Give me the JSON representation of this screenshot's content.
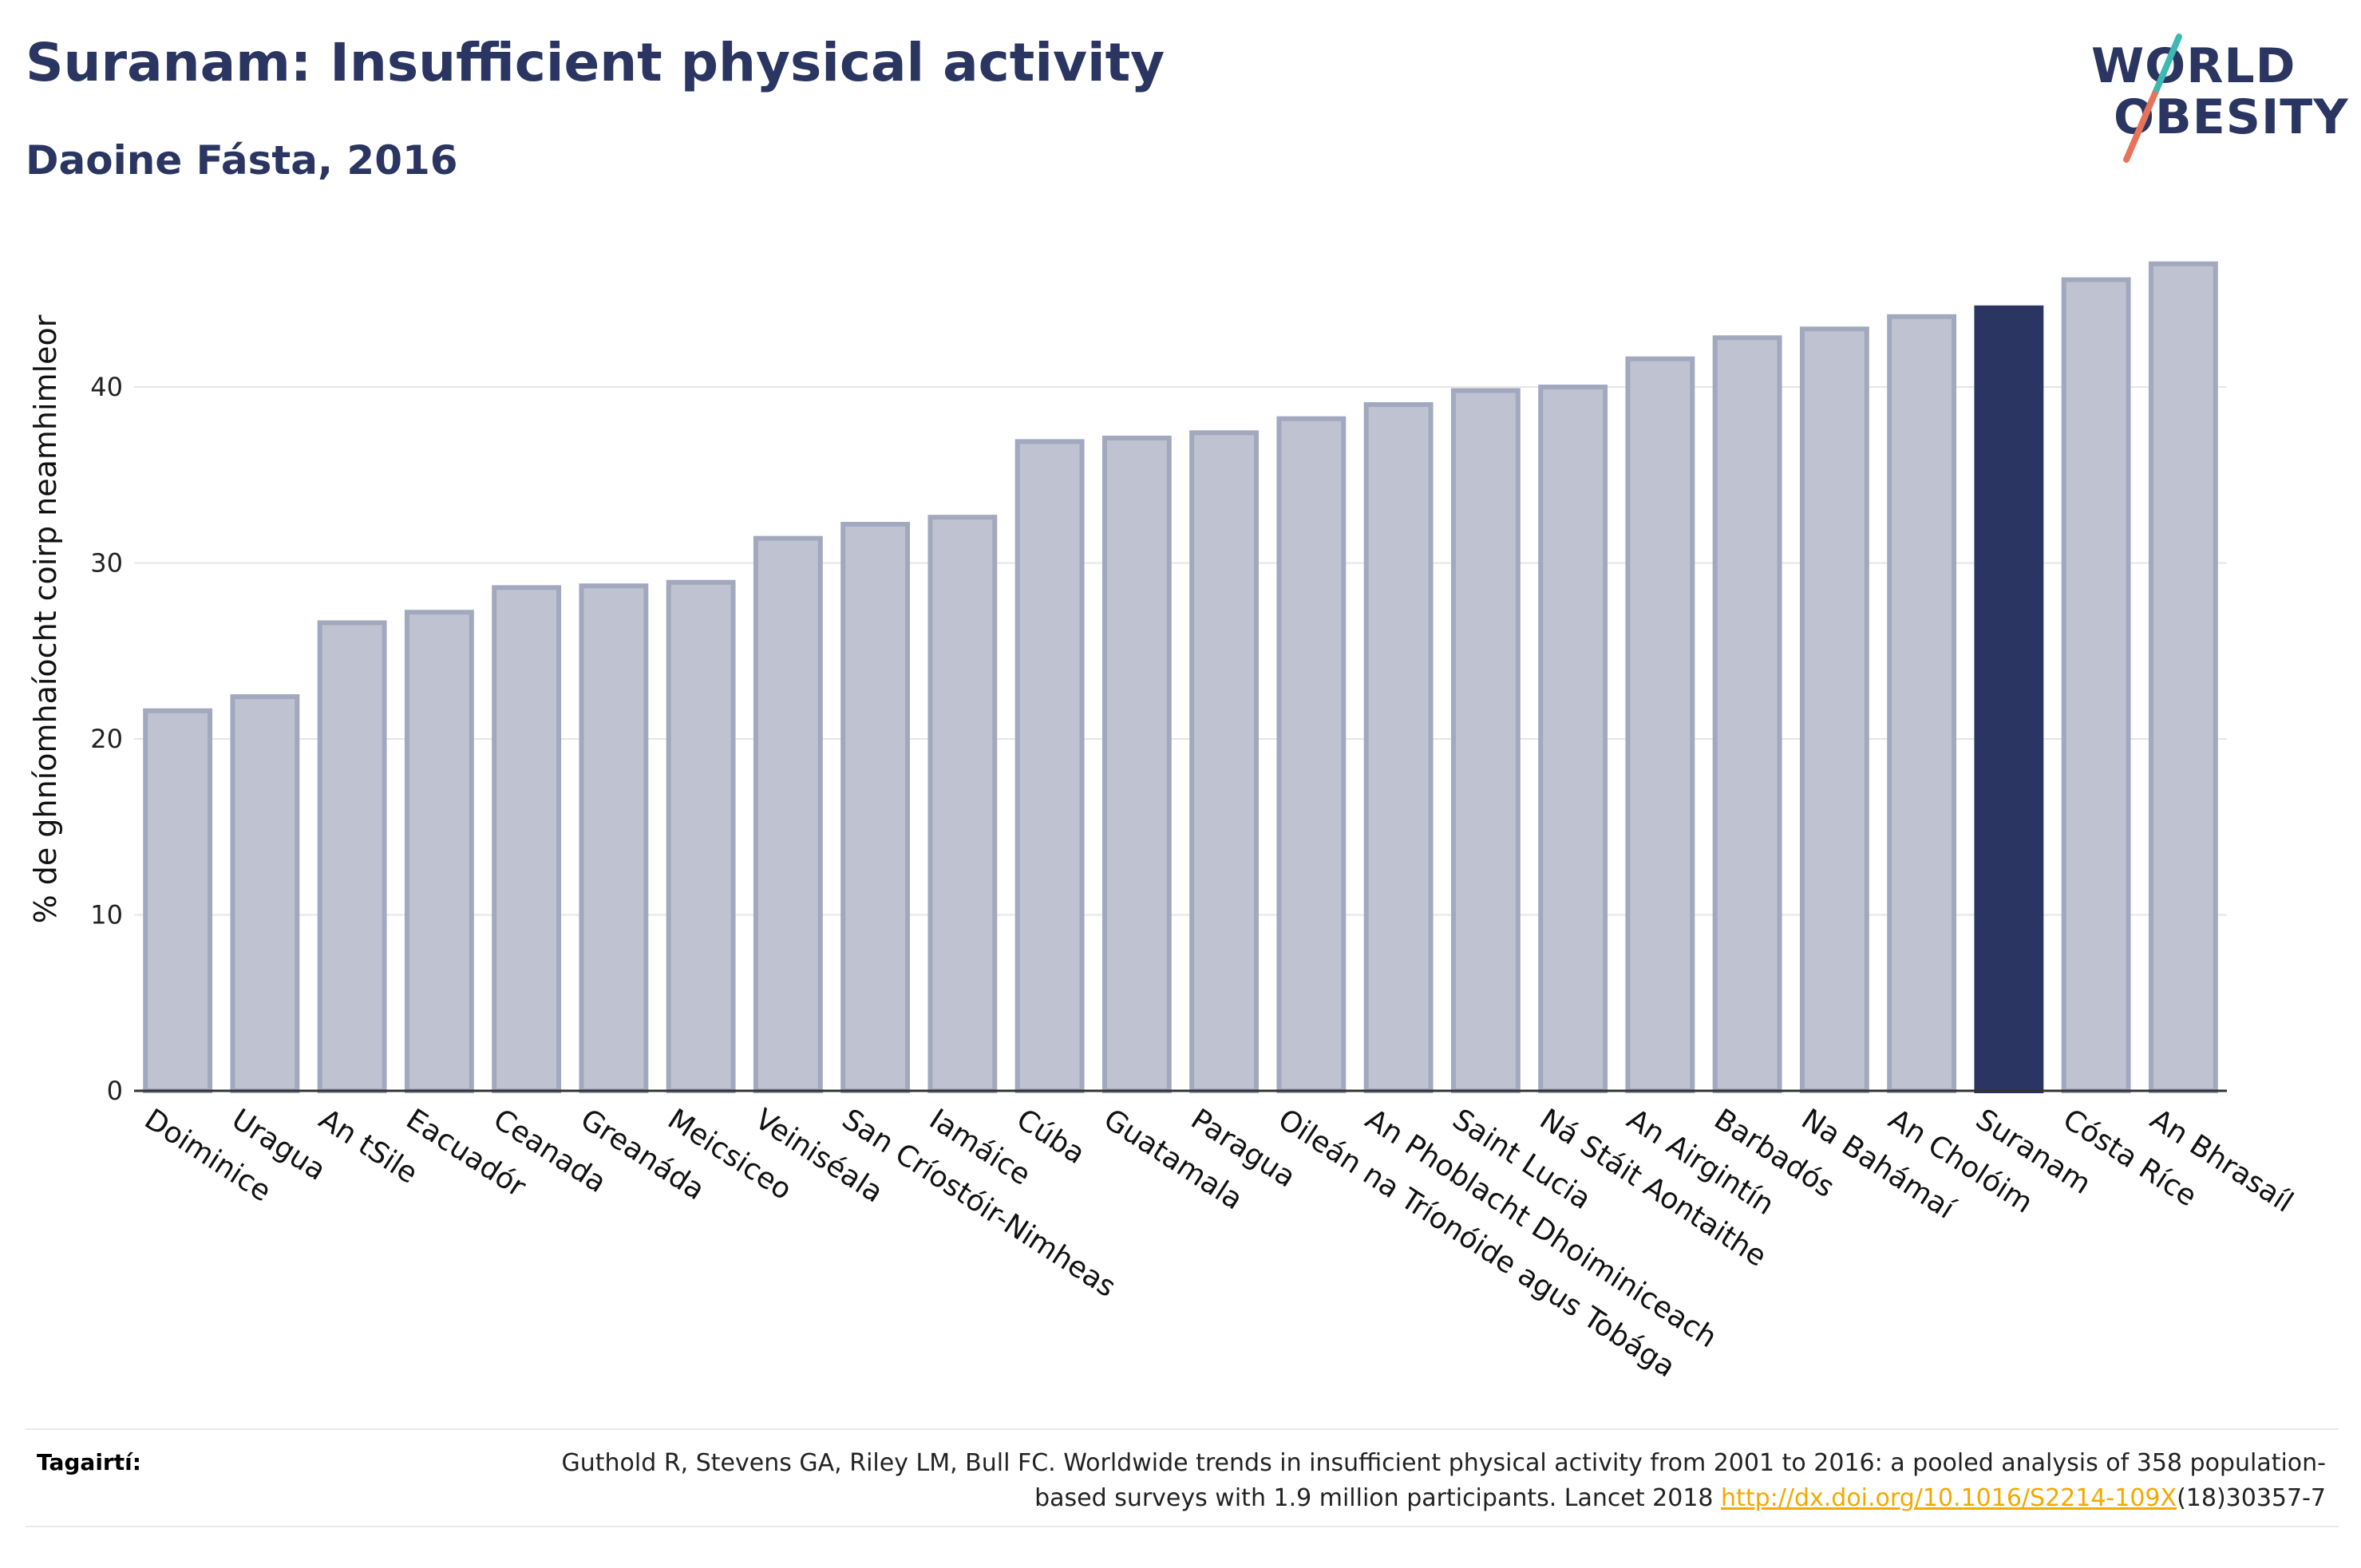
{
  "header": {
    "title": "Suranam: Insufficient physical activity",
    "subtitle": "Daoine Fásta, 2016"
  },
  "logo": {
    "line1": "WORLD",
    "line2": "OBESITY"
  },
  "colors": {
    "bar": "#bfc3d1",
    "bar_stroke": "#a2a8bd",
    "highlight": "#2a3561",
    "text": "#2a3561"
  },
  "chart_data": {
    "type": "bar",
    "ylabel": "% de ghníomhaíocht coirp neamhimleor",
    "ylim": [
      0,
      47
    ],
    "yticks": [
      0,
      10,
      20,
      30,
      40
    ],
    "grid": true,
    "highlight": "Suranam",
    "categories": [
      "Doiminice",
      "Uragua",
      "An tSile",
      "Eacuadór",
      "Ceanada",
      "Greanáda",
      "Meicsiceo",
      "Veiniséala",
      "San Críostóir-Nimheas",
      "Iamáice",
      "Cúba",
      "Guatamala",
      "Paragua",
      "Oileán na Tríonóide agus Tobága",
      "An Phoblacht Dhoiminiceach",
      "Saint Lucia",
      "Ná Stáit Aontaithe",
      "An Airgintín",
      "Barbadós",
      "Na Bahámaí",
      "An Cholóim",
      "Suranam",
      "Cósta Ríce",
      "An Bhrasaíl"
    ],
    "values": [
      21.6,
      22.4,
      26.6,
      27.2,
      28.6,
      28.7,
      28.9,
      31.4,
      32.2,
      32.6,
      36.9,
      37.1,
      37.4,
      38.2,
      39.0,
      39.8,
      40.0,
      41.6,
      42.8,
      43.3,
      44.0,
      44.5,
      46.1,
      47.0
    ]
  },
  "references": {
    "label": "Tagairtí:",
    "text_before": "Guthold R, Stevens GA, Riley LM, Bull FC. Worldwide trends in insufficient physical activity from 2001 to 2016: a pooled analysis of 358 population-based surveys with 1.9 million participants. Lancet 2018 ",
    "link": "http://dx.doi.org/10.1016/S2214-109X",
    "text_after": "(18)30357-7"
  }
}
